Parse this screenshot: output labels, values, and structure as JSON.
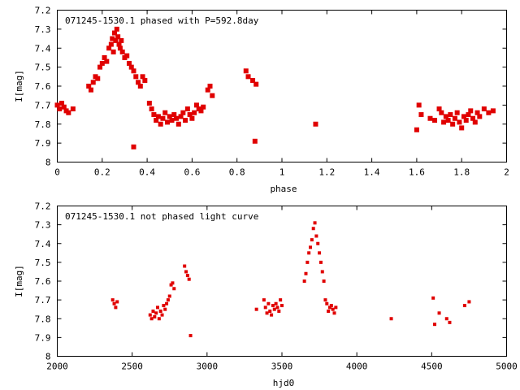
{
  "chart_data": [
    {
      "type": "scatter",
      "title": "071245-1530.1 phased with P=592.8day",
      "xlabel": "phase",
      "ylabel": "I[mag]",
      "xlim": [
        0,
        2
      ],
      "ylim": [
        7.2,
        8.0
      ],
      "y_inverted": true,
      "grid": false,
      "x_ticks": [
        "0",
        "0.2",
        "0.4",
        "0.6",
        "0.8",
        "1",
        "1.2",
        "1.4",
        "1.6",
        "1.8",
        "2"
      ],
      "y_ticks": [
        "7.2",
        "7.3",
        "7.4",
        "7.5",
        "7.6",
        "7.7",
        "7.8",
        "7.9",
        "8"
      ],
      "color": "#e00000",
      "series": [
        {
          "x": [
            0.0,
            0.01,
            0.02,
            0.03,
            0.04,
            0.05,
            0.07,
            0.14,
            0.15,
            0.16,
            0.17,
            0.18,
            0.19,
            0.2,
            0.21,
            0.22,
            0.23,
            0.24,
            0.245,
            0.25,
            0.255,
            0.26,
            0.265,
            0.27,
            0.275,
            0.28,
            0.285,
            0.29,
            0.3,
            0.31,
            0.32,
            0.33,
            0.34,
            0.35,
            0.36,
            0.37,
            0.38,
            0.39,
            0.34,
            0.41,
            0.42,
            0.43,
            0.44,
            0.45,
            0.46,
            0.47,
            0.48,
            0.49,
            0.5,
            0.51,
            0.52,
            0.53,
            0.54,
            0.55,
            0.56,
            0.57,
            0.58,
            0.59,
            0.6,
            0.61,
            0.62,
            0.63,
            0.64,
            0.65,
            0.67,
            0.68,
            0.69,
            0.84,
            0.85,
            0.87,
            0.88,
            0.885,
            1.15,
            1.6,
            1.61,
            1.62,
            1.66,
            1.68,
            1.7,
            1.71,
            1.72,
            1.73,
            1.74,
            1.75,
            1.76,
            1.77,
            1.78,
            1.79,
            1.8,
            1.81,
            1.82,
            1.83,
            1.84,
            1.85,
            1.86,
            1.87,
            1.88,
            1.9,
            1.92,
            1.94
          ],
          "y": [
            7.7,
            7.72,
            7.69,
            7.71,
            7.73,
            7.74,
            7.72,
            7.6,
            7.62,
            7.58,
            7.55,
            7.56,
            7.5,
            7.48,
            7.45,
            7.47,
            7.4,
            7.38,
            7.35,
            7.42,
            7.32,
            7.36,
            7.3,
            7.34,
            7.38,
            7.4,
            7.36,
            7.42,
            7.45,
            7.44,
            7.48,
            7.5,
            7.52,
            7.55,
            7.58,
            7.6,
            7.55,
            7.57,
            7.92,
            7.69,
            7.72,
            7.75,
            7.78,
            7.76,
            7.8,
            7.77,
            7.74,
            7.79,
            7.76,
            7.78,
            7.75,
            7.77,
            7.8,
            7.76,
            7.74,
            7.78,
            7.72,
            7.75,
            7.77,
            7.74,
            7.7,
            7.72,
            7.73,
            7.71,
            7.62,
            7.6,
            7.65,
            7.52,
            7.55,
            7.57,
            7.89,
            7.59,
            7.8,
            7.83,
            7.7,
            7.75,
            7.77,
            7.78,
            7.72,
            7.74,
            7.79,
            7.76,
            7.78,
            7.75,
            7.8,
            7.77,
            7.74,
            7.79,
            7.82,
            7.76,
            7.78,
            7.75,
            7.73,
            7.77,
            7.79,
            7.74,
            7.76,
            7.72,
            7.74,
            7.73
          ]
        }
      ]
    },
    {
      "type": "scatter",
      "title": "071245-1530.1 not phased light curve",
      "xlabel": "hjd0",
      "ylabel": "I[mag]",
      "xlim": [
        2000,
        5000
      ],
      "ylim": [
        7.2,
        8.0
      ],
      "y_inverted": true,
      "grid": false,
      "x_ticks": [
        "2000",
        "2500",
        "3000",
        "3500",
        "4000",
        "4500",
        "5000"
      ],
      "y_ticks": [
        "7.2",
        "7.3",
        "7.4",
        "7.5",
        "7.6",
        "7.7",
        "7.8",
        "7.9",
        "8"
      ],
      "color": "#e00000",
      "series": [
        {
          "x": [
            2370,
            2380,
            2390,
            2400,
            2620,
            2630,
            2640,
            2650,
            2660,
            2670,
            2680,
            2690,
            2700,
            2710,
            2720,
            2730,
            2740,
            2750,
            2760,
            2770,
            2780,
            2850,
            2860,
            2870,
            2880,
            2890,
            3330,
            3380,
            3390,
            3400,
            3410,
            3420,
            3430,
            3440,
            3450,
            3460,
            3470,
            3480,
            3490,
            3500,
            3650,
            3660,
            3670,
            3680,
            3690,
            3700,
            3710,
            3720,
            3730,
            3740,
            3750,
            3760,
            3770,
            3780,
            3790,
            3800,
            3810,
            3820,
            3830,
            3840,
            3850,
            3860,
            4230,
            4510,
            4520,
            4550,
            4600,
            4620,
            4720,
            4750
          ],
          "y": [
            7.7,
            7.72,
            7.74,
            7.71,
            7.78,
            7.8,
            7.76,
            7.79,
            7.77,
            7.74,
            7.8,
            7.76,
            7.78,
            7.73,
            7.75,
            7.72,
            7.7,
            7.68,
            7.62,
            7.61,
            7.64,
            7.52,
            7.55,
            7.57,
            7.59,
            7.89,
            7.75,
            7.7,
            7.74,
            7.77,
            7.72,
            7.76,
            7.78,
            7.73,
            7.75,
            7.72,
            7.74,
            7.76,
            7.7,
            7.73,
            7.6,
            7.56,
            7.5,
            7.45,
            7.42,
            7.38,
            7.32,
            7.29,
            7.36,
            7.4,
            7.45,
            7.5,
            7.55,
            7.6,
            7.7,
            7.72,
            7.76,
            7.74,
            7.73,
            7.75,
            7.77,
            7.74,
            7.8,
            7.69,
            7.83,
            7.77,
            7.8,
            7.82,
            7.73,
            7.71
          ]
        }
      ]
    }
  ]
}
